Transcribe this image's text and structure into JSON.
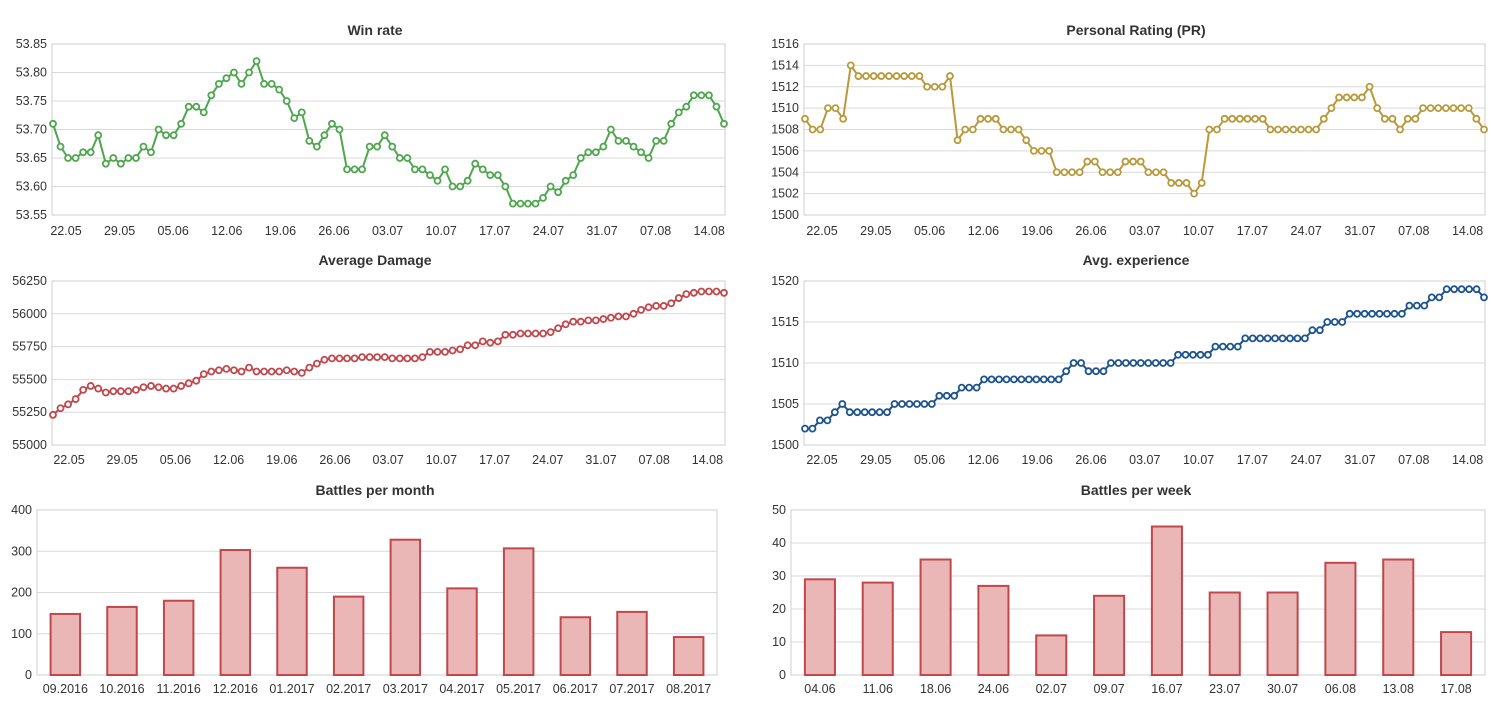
{
  "chart_data": [
    {
      "type": "line",
      "title": "Win rate",
      "color": "#4ea64e",
      "x_labels": [
        "22.05",
        "29.05",
        "05.06",
        "12.06",
        "19.06",
        "26.06",
        "03.07",
        "10.07",
        "17.07",
        "24.07",
        "31.07",
        "07.08",
        "14.08"
      ],
      "yticks": [
        "53.55",
        "53.60",
        "53.65",
        "53.70",
        "53.75",
        "53.80",
        "53.85"
      ],
      "ylim": [
        53.55,
        53.85
      ],
      "x_start": "2016-05-17",
      "grid": true,
      "values": [
        53.71,
        53.67,
        53.65,
        53.65,
        53.66,
        53.66,
        53.69,
        53.64,
        53.65,
        53.64,
        53.65,
        53.65,
        53.67,
        53.66,
        53.7,
        53.69,
        53.69,
        53.71,
        53.74,
        53.74,
        53.73,
        53.76,
        53.78,
        53.79,
        53.8,
        53.78,
        53.8,
        53.82,
        53.78,
        53.78,
        53.77,
        53.75,
        53.72,
        53.73,
        53.68,
        53.67,
        53.69,
        53.71,
        53.7,
        53.63,
        53.63,
        53.63,
        53.67,
        53.67,
        53.69,
        53.67,
        53.65,
        53.65,
        53.63,
        53.63,
        53.62,
        53.61,
        53.63,
        53.6,
        53.6,
        53.61,
        53.64,
        53.63,
        53.62,
        53.62,
        53.6,
        53.57,
        53.57,
        53.57,
        53.57,
        53.58,
        53.6,
        53.59,
        53.61,
        53.62,
        53.65,
        53.66,
        53.66,
        53.67,
        53.7,
        53.68,
        53.68,
        53.67,
        53.66,
        53.65,
        53.68,
        53.68,
        53.71,
        53.73,
        53.74,
        53.76,
        53.76,
        53.76,
        53.74,
        53.71
      ]
    },
    {
      "type": "line",
      "title": "Personal Rating (PR)",
      "color": "#b89a3c",
      "x_labels": [
        "22.05",
        "29.05",
        "05.06",
        "12.06",
        "19.06",
        "26.06",
        "03.07",
        "10.07",
        "17.07",
        "24.07",
        "31.07",
        "07.08",
        "14.08"
      ],
      "yticks": [
        "1500",
        "1502",
        "1504",
        "1506",
        "1508",
        "1510",
        "1512",
        "1514",
        "1516"
      ],
      "ylim": [
        1500,
        1516
      ],
      "x_start": "2016-05-17",
      "grid": true,
      "values": [
        1509,
        1508,
        1508,
        1510,
        1510,
        1509,
        1514,
        1513,
        1513,
        1513,
        1513,
        1513,
        1513,
        1513,
        1513,
        1513,
        1512,
        1512,
        1512,
        1513,
        1507,
        1508,
        1508,
        1509,
        1509,
        1509,
        1508,
        1508,
        1508,
        1507,
        1506,
        1506,
        1506,
        1504,
        1504,
        1504,
        1504,
        1505,
        1505,
        1504,
        1504,
        1504,
        1505,
        1505,
        1505,
        1504,
        1504,
        1504,
        1503,
        1503,
        1503,
        1502,
        1503,
        1508,
        1508,
        1509,
        1509,
        1509,
        1509,
        1509,
        1509,
        1508,
        1508,
        1508,
        1508,
        1508,
        1508,
        1508,
        1509,
        1510,
        1511,
        1511,
        1511,
        1511,
        1512,
        1510,
        1509,
        1509,
        1508,
        1509,
        1509,
        1510,
        1510,
        1510,
        1510,
        1510,
        1510,
        1510,
        1509,
        1508
      ]
    },
    {
      "type": "line",
      "title": "Average Damage",
      "color": "#c0484c",
      "x_labels": [
        "22.05",
        "29.05",
        "05.06",
        "12.06",
        "19.06",
        "26.06",
        "03.07",
        "10.07",
        "17.07",
        "24.07",
        "31.07",
        "07.08",
        "14.08"
      ],
      "yticks": [
        "55000",
        "55250",
        "55500",
        "55750",
        "56000",
        "56250"
      ],
      "ylim": [
        55000,
        56250
      ],
      "x_start": "2016-05-17",
      "grid": true,
      "values": [
        55230,
        55280,
        55310,
        55350,
        55420,
        55450,
        55430,
        55400,
        55410,
        55410,
        55410,
        55420,
        55440,
        55450,
        55440,
        55430,
        55430,
        55450,
        55470,
        55490,
        55540,
        55560,
        55570,
        55580,
        55570,
        55560,
        55590,
        55560,
        55560,
        55560,
        55560,
        55570,
        55560,
        55550,
        55590,
        55620,
        55650,
        55660,
        55660,
        55660,
        55660,
        55670,
        55670,
        55670,
        55670,
        55660,
        55660,
        55660,
        55660,
        55670,
        55710,
        55710,
        55710,
        55720,
        55730,
        55760,
        55760,
        55790,
        55780,
        55790,
        55840,
        55840,
        55850,
        55850,
        55850,
        55850,
        55860,
        55890,
        55920,
        55940,
        55940,
        55950,
        55950,
        55960,
        55970,
        55980,
        55980,
        56000,
        56030,
        56050,
        56060,
        56060,
        56080,
        56120,
        56150,
        56160,
        56170,
        56170,
        56170,
        56160
      ]
    },
    {
      "type": "line",
      "title": "Avg. experience",
      "color": "#1d538f",
      "x_labels": [
        "22.05",
        "29.05",
        "05.06",
        "12.06",
        "19.06",
        "26.06",
        "03.07",
        "10.07",
        "17.07",
        "24.07",
        "31.07",
        "07.08",
        "14.08"
      ],
      "yticks": [
        "1500",
        "1505",
        "1510",
        "1515",
        "1520"
      ],
      "ylim": [
        1500,
        1520
      ],
      "x_start": "2016-05-17",
      "grid": true,
      "values": [
        1502,
        1502,
        1503,
        1503,
        1504,
        1505,
        1504,
        1504,
        1504,
        1504,
        1504,
        1504,
        1505,
        1505,
        1505,
        1505,
        1505,
        1505,
        1506,
        1506,
        1506,
        1507,
        1507,
        1507,
        1508,
        1508,
        1508,
        1508,
        1508,
        1508,
        1508,
        1508,
        1508,
        1508,
        1508,
        1509,
        1510,
        1510,
        1509,
        1509,
        1509,
        1510,
        1510,
        1510,
        1510,
        1510,
        1510,
        1510,
        1510,
        1510,
        1511,
        1511,
        1511,
        1511,
        1511,
        1512,
        1512,
        1512,
        1512,
        1513,
        1513,
        1513,
        1513,
        1513,
        1513,
        1513,
        1513,
        1513,
        1514,
        1514,
        1515,
        1515,
        1515,
        1516,
        1516,
        1516,
        1516,
        1516,
        1516,
        1516,
        1516,
        1517,
        1517,
        1517,
        1518,
        1518,
        1519,
        1519,
        1519,
        1519,
        1519,
        1518
      ]
    },
    {
      "type": "bar",
      "title": "Battles per month",
      "color": "#ebb6b6",
      "border_color": "#c0484c",
      "categories": [
        "09.2016",
        "10.2016",
        "11.2016",
        "12.2016",
        "01.2017",
        "02.2017",
        "03.2017",
        "04.2017",
        "05.2017",
        "06.2017",
        "07.2017",
        "08.2017"
      ],
      "values": [
        148,
        165,
        180,
        303,
        260,
        190,
        328,
        210,
        307,
        140,
        153,
        92
      ],
      "yticks": [
        "0",
        "100",
        "200",
        "300",
        "400"
      ],
      "ylim": [
        0,
        400
      ],
      "grid": true
    },
    {
      "type": "bar",
      "title": "Battles per week",
      "color": "#ebb6b6",
      "border_color": "#c0484c",
      "categories": [
        "04.06",
        "11.06",
        "18.06",
        "24.06",
        "02.07",
        "09.07",
        "16.07",
        "23.07",
        "30.07",
        "06.08",
        "13.08",
        "17.08"
      ],
      "values": [
        29,
        28,
        35,
        27,
        12,
        24,
        45,
        25,
        25,
        34,
        35,
        13
      ],
      "yticks": [
        "0",
        "10",
        "20",
        "30",
        "40",
        "50"
      ],
      "ylim": [
        0,
        50
      ],
      "grid": true
    }
  ]
}
